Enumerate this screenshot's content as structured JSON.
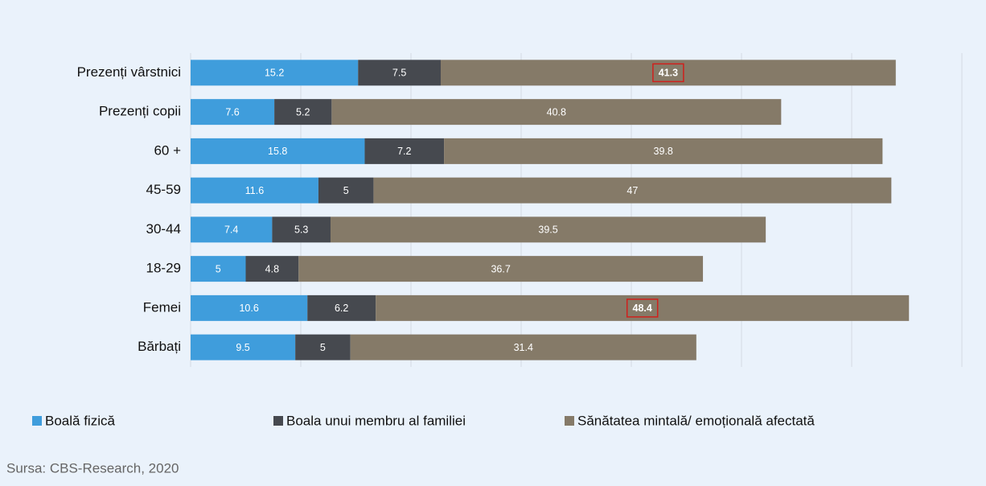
{
  "chart_data": {
    "type": "stacked-bar-horizontal",
    "categories": [
      "Prezenți vârstnici",
      "Prezenți copii",
      "60 +",
      "45-59",
      "30-44",
      "18-29",
      "Femei",
      "Bărbați"
    ],
    "series": [
      {
        "name": "Boală fizică",
        "color": "#3f9ddc",
        "values": [
          15.2,
          7.6,
          15.8,
          11.6,
          7.4,
          5,
          10.6,
          9.5
        ]
      },
      {
        "name": "Boala unui membru al familiei",
        "color": "#46494f",
        "values": [
          7.5,
          5.2,
          7.2,
          5,
          5.3,
          4.8,
          6.2,
          5
        ]
      },
      {
        "name": "Sănătatea mintală/ emoțională afectată",
        "color": "#857a68",
        "values": [
          41.3,
          40.8,
          39.8,
          47,
          39.5,
          36.7,
          48.4,
          31.4
        ],
        "highlight": [
          0,
          6
        ]
      }
    ],
    "xlim": [
      0,
      70
    ],
    "xticks": [
      0,
      10,
      20,
      30,
      40,
      50,
      60,
      70
    ],
    "grid": true,
    "legend": "bottom",
    "source": "Sursa: CBS-Research, 2020"
  }
}
